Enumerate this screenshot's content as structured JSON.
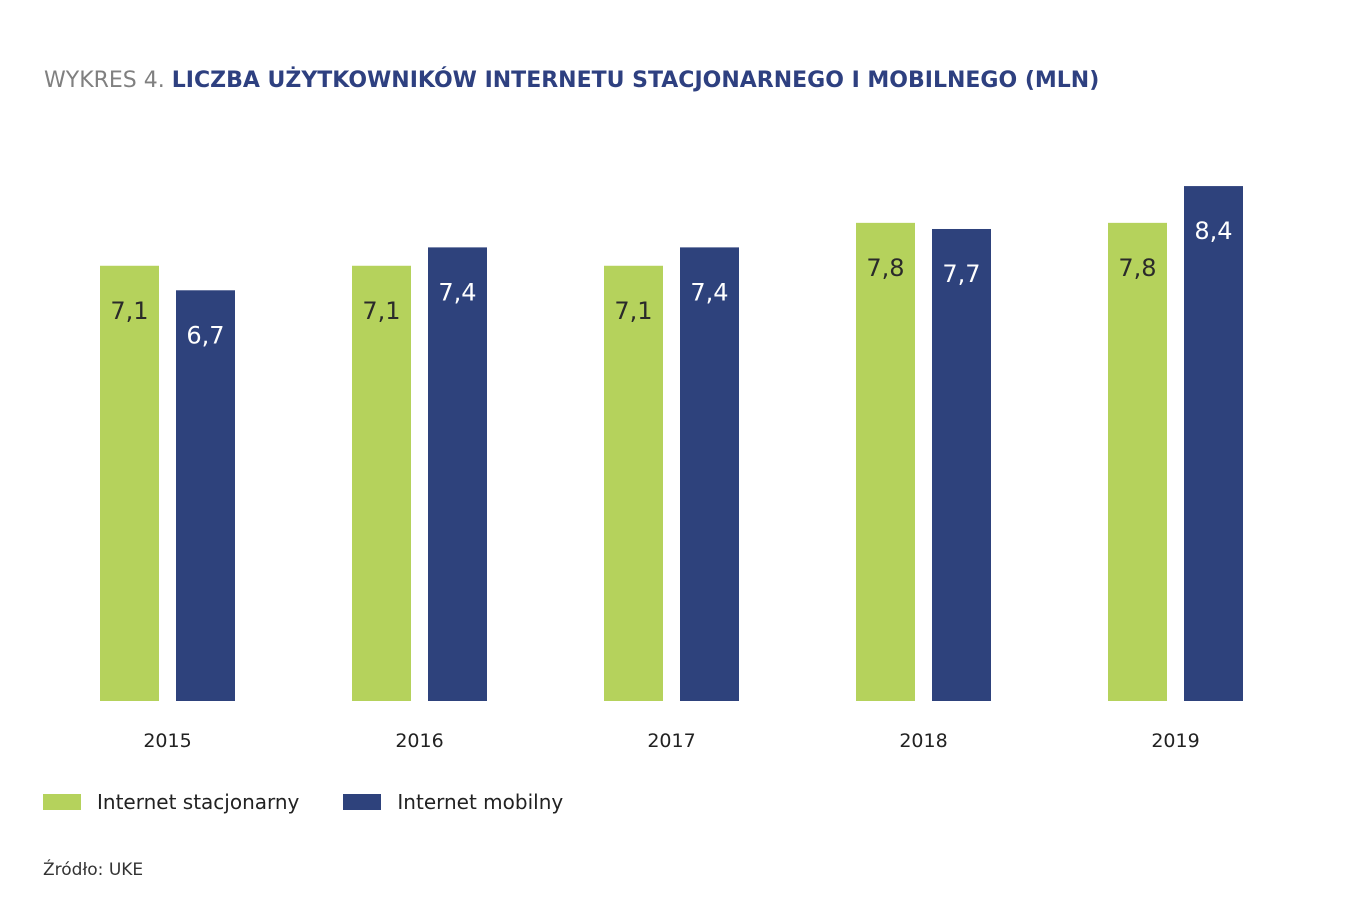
{
  "title": {
    "prefix": "WYKRES 4.",
    "main": "LICZBA UŻYTKOWNIKÓW INTERNETU STACJONARNEGO I MOBILNEGO (MLN)"
  },
  "colors": {
    "stacjonarny": "#b5d25c",
    "mobilny": "#2e427c",
    "title_accent": "#2e4080"
  },
  "chart_data": {
    "type": "bar",
    "categories": [
      "2015",
      "2016",
      "2017",
      "2018",
      "2019"
    ],
    "series": [
      {
        "name": "Internet stacjonarny",
        "values": [
          7.1,
          7.1,
          7.1,
          7.8,
          7.8
        ],
        "labels": [
          "7,1",
          "7,1",
          "7,1",
          "7,8",
          "7,8"
        ]
      },
      {
        "name": "Internet mobilny",
        "values": [
          6.7,
          7.4,
          7.4,
          7.7,
          8.4
        ],
        "labels": [
          "6,7",
          "7,4",
          "7,4",
          "7,7",
          "8,4"
        ]
      }
    ],
    "ylim": [
      0,
      8.4
    ],
    "grid": false,
    "legend_position": "bottom-left"
  },
  "legend": [
    {
      "label": "Internet stacjonarny"
    },
    {
      "label": "Internet mobilny"
    }
  ],
  "source": "Źródło: UKE"
}
